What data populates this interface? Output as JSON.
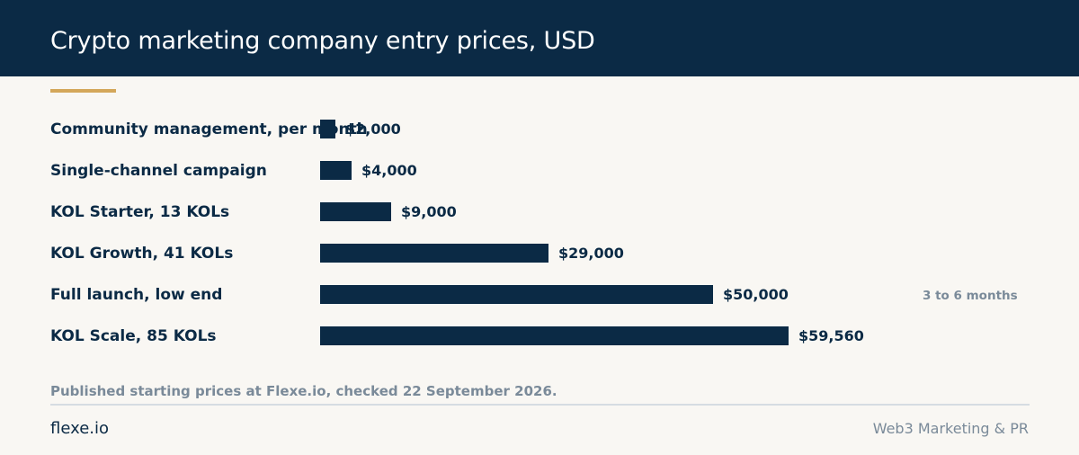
{
  "header": {
    "title": "Crypto marketing company entry prices, USD"
  },
  "chart_data": {
    "type": "bar",
    "orientation": "horizontal",
    "title": "Crypto marketing company entry prices, USD",
    "categories": [
      "Community management, per month",
      "Single-channel campaign",
      "KOL Starter, 13 KOLs",
      "KOL Growth, 41 KOLs",
      "Full launch, low end",
      "KOL Scale, 85 KOLs"
    ],
    "values": [
      2000,
      4000,
      9000,
      29000,
      50000,
      59560
    ],
    "value_labels": [
      "$2,000",
      "$4,000",
      "$9,000",
      "$29,000",
      "$50,000",
      "$59,560"
    ],
    "annotations": [
      {
        "category": "Full launch, low end",
        "text": "3 to 6 months"
      }
    ],
    "colors": {
      "bar": "#0b2a45",
      "accent": "#d4a75a"
    }
  },
  "footer": {
    "source": "Published starting prices at Flexe.io, checked 22 September 2026.",
    "brand": "flexe.io",
    "tagline": "Web3 Marketing & PR"
  }
}
